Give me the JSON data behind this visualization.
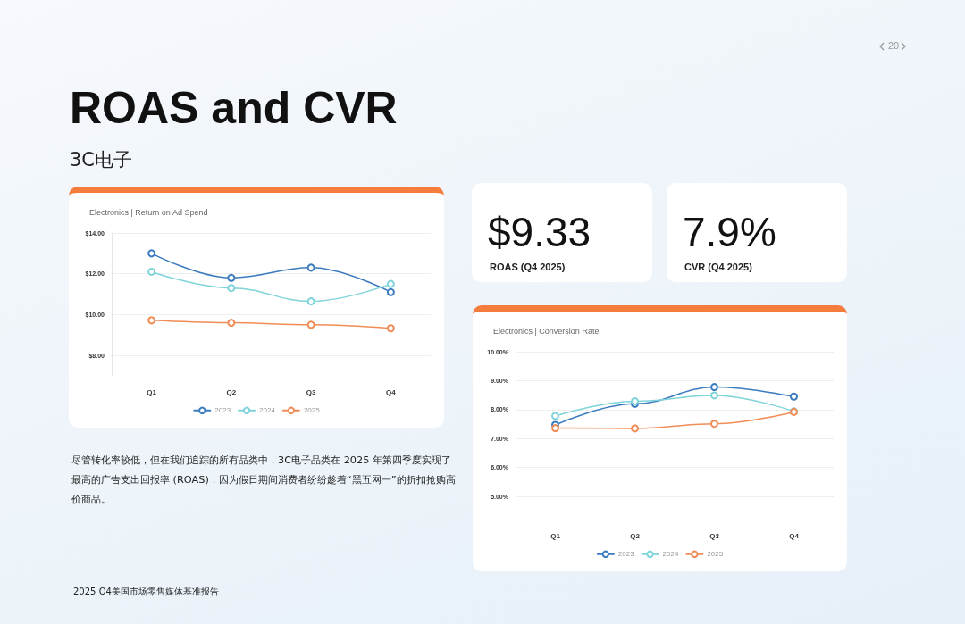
{
  "chart_data": [
    {
      "type": "other",
      "title": "ROAS and CVR",
      "subtitle": "3C电子",
      "annotations": [
        "20",
        "尽管转化率较低，但在我们追踪的所有品类中，3C电子品类在 2025 年第四季度实现了最高的广告支出回报率 (ROAS)，因为假日期间消费者纷纷趁着“黑五网一”的折扣抢购高价商品。",
        "2025 Q4美国市场零售媒体基准报告"
      ]
    },
    {
      "type": "line",
      "title": "Electronics | Return on Ad Spend",
      "categories": [
        "Q1",
        "Q2",
        "Q3",
        "Q4"
      ],
      "series": [
        {
          "name": "2023",
          "color": "#3b7bbf",
          "values": [
            13.0,
            11.8,
            12.3,
            11.1
          ]
        },
        {
          "name": "2024",
          "color": "#7fd4da",
          "values": [
            12.1,
            11.3,
            10.65,
            11.5
          ]
        },
        {
          "name": "2025",
          "color": "#f08c56",
          "values": [
            9.72,
            9.6,
            9.5,
            9.33
          ]
        }
      ],
      "ylim": [
        7,
        14
      ],
      "yticks": [
        {
          "value": 8,
          "label": "$8.00"
        },
        {
          "value": 10,
          "label": "$10.00"
        },
        {
          "value": 12,
          "label": "$12.00"
        },
        {
          "value": 14,
          "label": "$14.00"
        }
      ],
      "grid": "y",
      "legend": "bottom",
      "marker": "circle"
    },
    {
      "type": "other",
      "title": "$9.33",
      "subtitle": "ROAS (Q4 2025)"
    },
    {
      "type": "other",
      "title": "7.9%",
      "subtitle": "CVR (Q4 2025)"
    },
    {
      "type": "line",
      "title": "Electronics | Conversion Rate",
      "categories": [
        "Q1",
        "Q2",
        "Q3",
        "Q4"
      ],
      "series": [
        {
          "name": "2023",
          "color": "#3b7bbf",
          "values": [
            7.47,
            8.2,
            8.78,
            8.45
          ]
        },
        {
          "name": "2024",
          "color": "#7fd4da",
          "values": [
            7.78,
            8.29,
            8.49,
            7.94
          ]
        },
        {
          "name": "2025",
          "color": "#f08c56",
          "values": [
            7.36,
            7.35,
            7.51,
            7.92
          ]
        }
      ],
      "ylim": [
        4.2,
        10
      ],
      "yticks": [
        {
          "value": 5,
          "label": "5.00%"
        },
        {
          "value": 6,
          "label": "6.00%"
        },
        {
          "value": 7,
          "label": "7.00%"
        },
        {
          "value": 8,
          "label": "8.00%"
        },
        {
          "value": 9,
          "label": "9.00%"
        },
        {
          "value": 10,
          "label": "10.00%"
        }
      ],
      "grid": "y",
      "legend": "bottom",
      "marker": "circle"
    }
  ]
}
